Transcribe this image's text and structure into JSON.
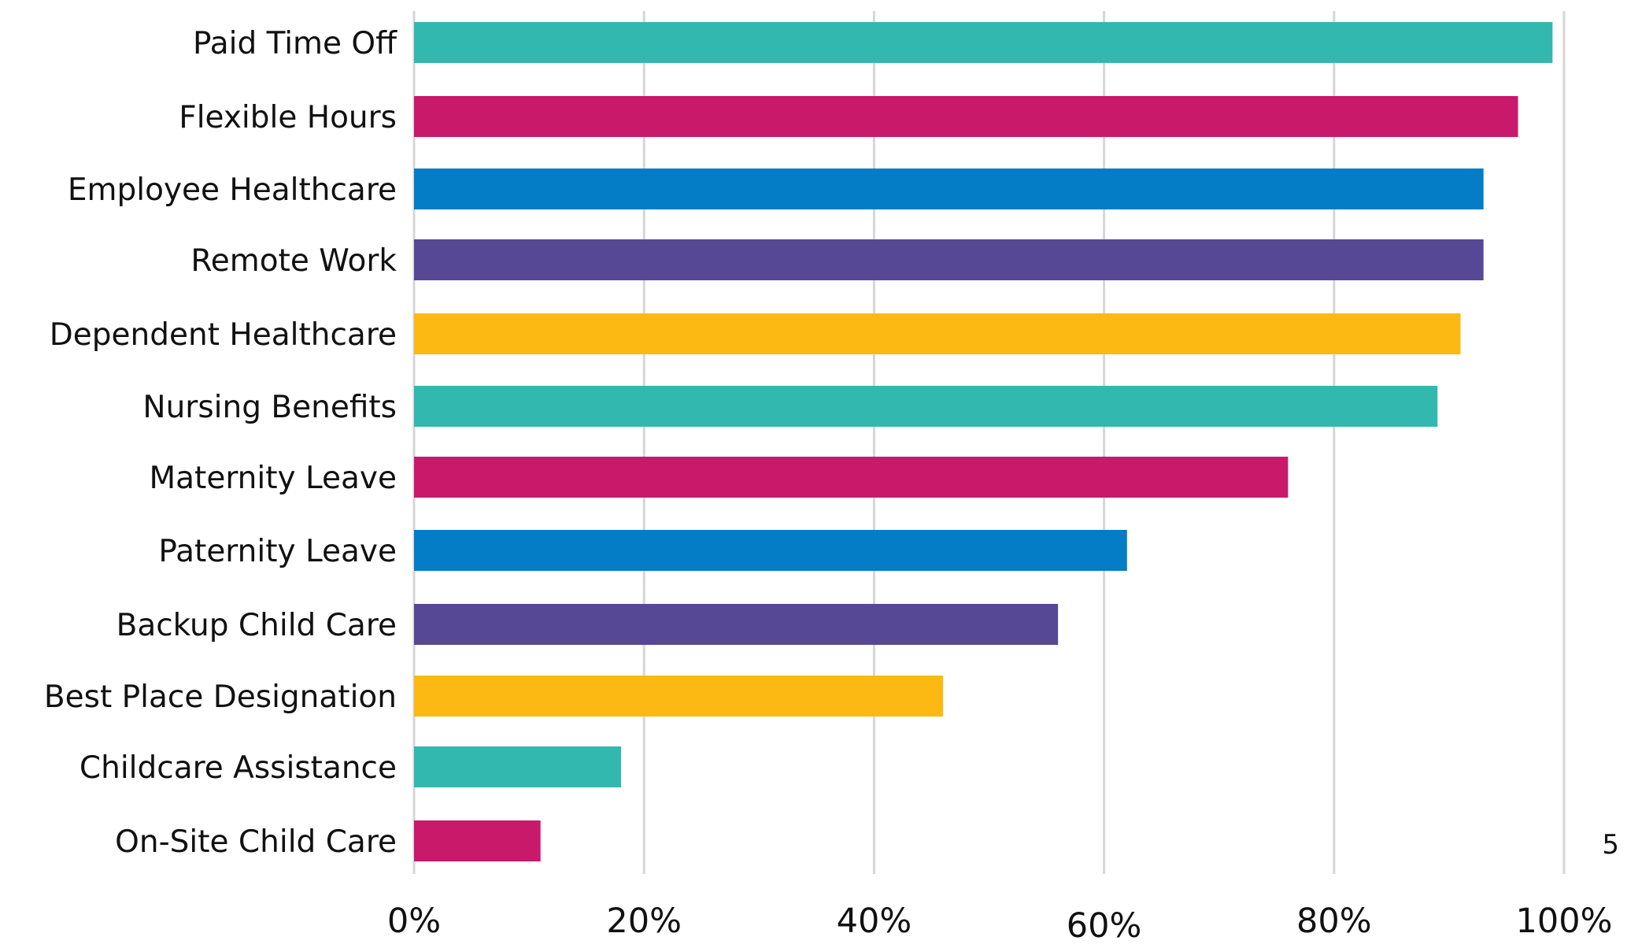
{
  "chart_data": {
    "type": "bar",
    "orientation": "horizontal",
    "categories": [
      "Paid Time Off",
      "Flexible Hours",
      "Employee Healthcare",
      "Remote Work",
      "Dependent Healthcare",
      "Nursing Benefits",
      "Maternity Leave",
      "Paternity Leave",
      "Backup Child Care",
      "Best Place Designation",
      "Childcare Assistance",
      "On-Site Child Care"
    ],
    "values": [
      0.99,
      0.96,
      0.93,
      0.93,
      0.91,
      0.89,
      0.76,
      0.62,
      0.56,
      0.46,
      0.18,
      0.11
    ],
    "colors": [
      "#33b8b0",
      "#c8196b",
      "#047dc6",
      "#564895",
      "#fdb913",
      "#33b8b0",
      "#c8196b",
      "#047dc6",
      "#564895",
      "#fdb913",
      "#33b8b0",
      "#c8196b"
    ],
    "xlim": [
      0,
      1
    ],
    "x_ticks": [
      "0%",
      "20%",
      "40%",
      "60%",
      "80%",
      "100%"
    ],
    "grid": "vertical",
    "title": "",
    "xlabel": "",
    "ylabel": ""
  },
  "footnote": "5"
}
